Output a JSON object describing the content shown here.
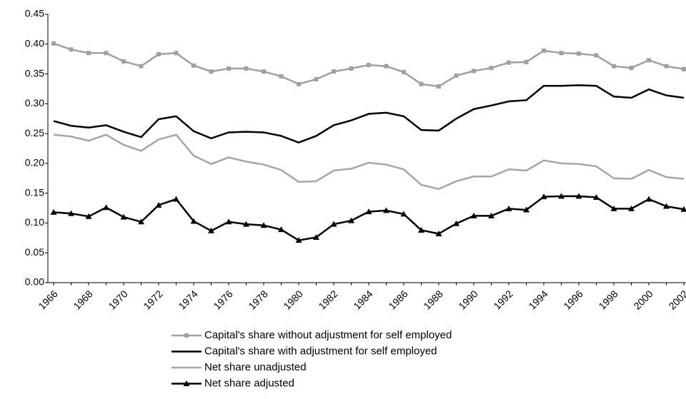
{
  "chart_data": {
    "type": "line",
    "categories": [
      "1966",
      null,
      "1968",
      null,
      "1970",
      null,
      "1972",
      null,
      "1974",
      null,
      "1976",
      null,
      "1978",
      null,
      "1980",
      null,
      "1982",
      null,
      "1984",
      null,
      "1986",
      null,
      "1988",
      null,
      "1990",
      null,
      "1992",
      null,
      "1994",
      null,
      "1996",
      null,
      "1998",
      null,
      "2000",
      null,
      "2002"
    ],
    "ylim": [
      0,
      0.45
    ],
    "yticks": [
      {
        "value": 0,
        "label": "0.00"
      },
      0.05,
      {
        "value": 0.1,
        "label": "0.10"
      },
      0.15,
      {
        "value": 0.2,
        "label": "0.20"
      },
      0.25,
      {
        "value": 0.3,
        "label": "0.30"
      },
      0.35,
      {
        "value": 0.4,
        "label": "0.40"
      },
      0.45
    ],
    "series": [
      {
        "name": "Capital's share without adjustment for self employed",
        "color": "#a0a0a0",
        "marker": "square",
        "values": [
          0.401,
          0.391,
          0.385,
          0.385,
          0.371,
          0.363,
          0.383,
          0.385,
          0.364,
          0.354,
          0.359,
          0.359,
          0.354,
          0.346,
          0.333,
          0.341,
          0.354,
          0.359,
          0.365,
          0.363,
          0.353,
          0.333,
          0.329,
          0.347,
          0.355,
          0.36,
          0.369,
          0.37,
          0.389,
          0.385,
          0.384,
          0.381,
          0.363,
          0.36,
          0.373,
          0.363,
          0.358
        ]
      },
      {
        "name": "Capital's share with adjustment for self employed",
        "color": "#000000",
        "marker": "none",
        "values": [
          0.271,
          0.263,
          0.26,
          0.264,
          0.253,
          0.244,
          0.274,
          0.279,
          0.254,
          0.242,
          0.252,
          0.253,
          0.252,
          0.246,
          0.235,
          0.246,
          0.264,
          0.272,
          0.283,
          0.285,
          0.279,
          0.256,
          0.255,
          0.275,
          0.291,
          0.297,
          0.304,
          0.306,
          0.33,
          0.33,
          0.331,
          0.33,
          0.312,
          0.31,
          0.324,
          0.314,
          0.31
        ]
      },
      {
        "name": "Net share unadjusted",
        "color": "#a6a6a6",
        "marker": "none",
        "values": [
          0.248,
          0.245,
          0.238,
          0.248,
          0.231,
          0.221,
          0.24,
          0.248,
          0.213,
          0.199,
          0.21,
          0.203,
          0.198,
          0.189,
          0.169,
          0.17,
          0.188,
          0.191,
          0.201,
          0.198,
          0.19,
          0.164,
          0.157,
          0.17,
          0.178,
          0.178,
          0.19,
          0.188,
          0.205,
          0.2,
          0.199,
          0.195,
          0.175,
          0.174,
          0.189,
          0.177,
          0.174
        ]
      },
      {
        "name": "Net share adjusted",
        "color": "#000000",
        "marker": "triangle",
        "values": [
          0.118,
          0.116,
          0.111,
          0.126,
          0.11,
          0.102,
          0.13,
          0.14,
          0.103,
          0.087,
          0.102,
          0.098,
          0.096,
          0.089,
          0.071,
          0.076,
          0.098,
          0.104,
          0.119,
          0.121,
          0.115,
          0.088,
          0.082,
          0.099,
          0.112,
          0.112,
          0.124,
          0.122,
          0.144,
          0.145,
          0.145,
          0.143,
          0.124,
          0.124,
          0.14,
          0.128,
          0.123
        ]
      }
    ]
  }
}
